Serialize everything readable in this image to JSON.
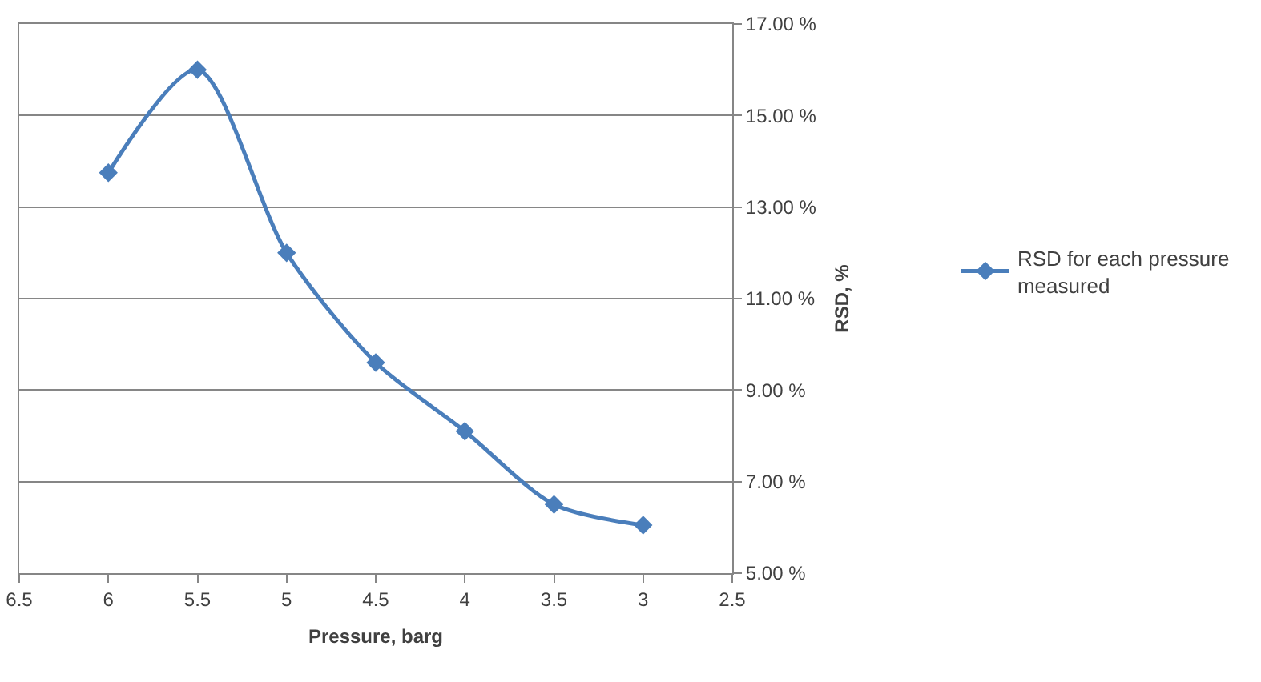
{
  "chart_data": {
    "type": "line",
    "xlabel": "Pressure, barg",
    "ylabel": "RSD, %",
    "x": [
      6,
      5.5,
      5,
      4.5,
      4,
      3.5,
      3
    ],
    "series": [
      {
        "name": "RSD for each pressure measured",
        "color": "#4a7ebb",
        "values": [
          13.75,
          16.0,
          12.0,
          9.6,
          8.1,
          6.5,
          6.05
        ]
      }
    ],
    "xlim": [
      6.5,
      2.5
    ],
    "xticks": [
      6.5,
      6,
      5.5,
      5,
      4.5,
      4,
      3.5,
      3,
      2.5
    ],
    "ylim": [
      5,
      17
    ],
    "yticks": [
      {
        "value": 5,
        "label": "5.00 %"
      },
      {
        "value": 7,
        "label": "7.00 %"
      },
      {
        "value": 9,
        "label": "9.00 %"
      },
      {
        "value": 11,
        "label": "11.00 %"
      },
      {
        "value": 13,
        "label": "13.00 %"
      },
      {
        "value": 15,
        "label": "15.00 %"
      },
      {
        "value": 17,
        "label": "17.00 %"
      }
    ],
    "grid": "y",
    "legend": "right",
    "marker": "diamond",
    "line_style": "solid"
  }
}
